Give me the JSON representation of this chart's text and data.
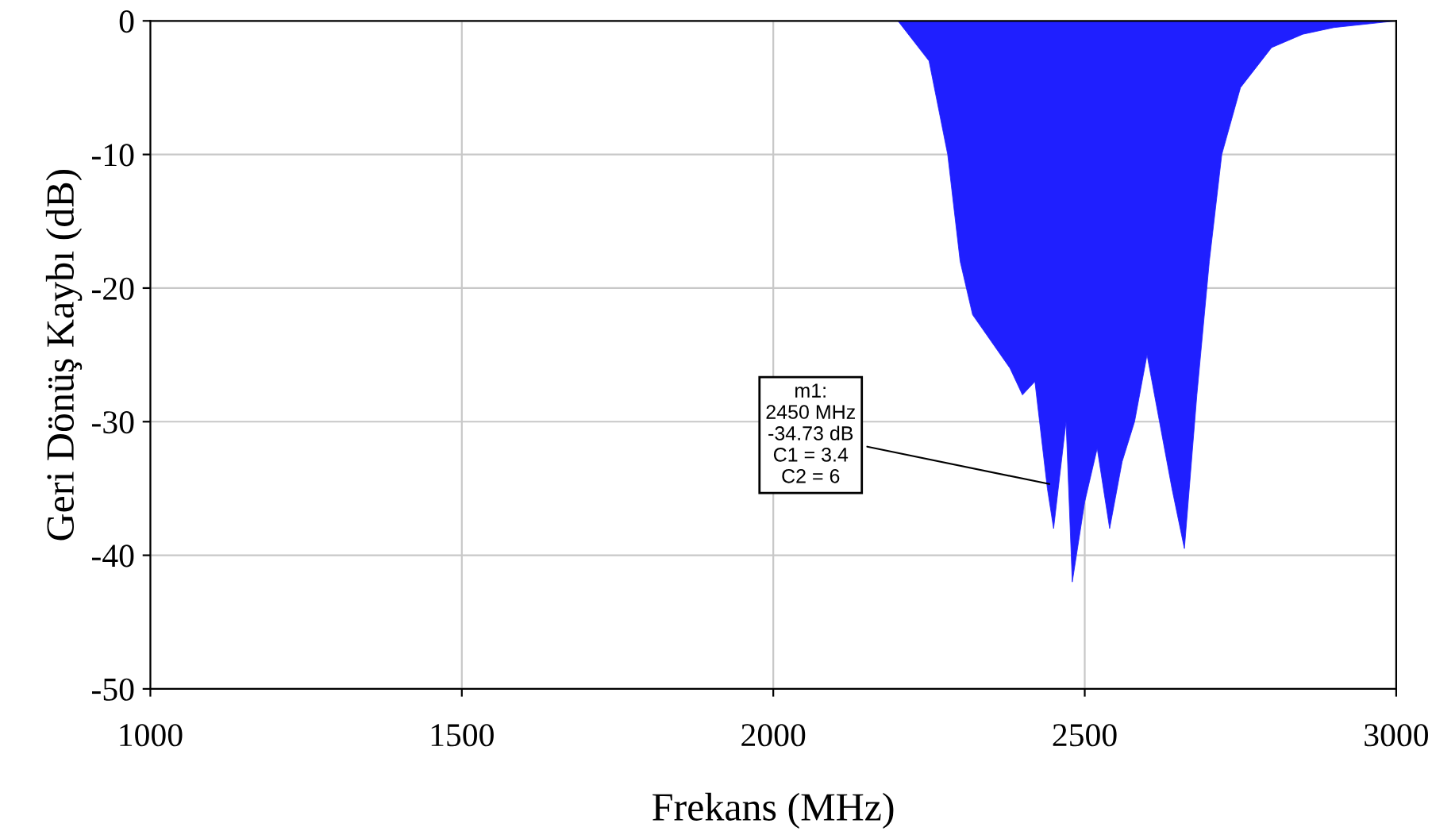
{
  "chart_data": {
    "type": "area",
    "xlabel": "Frekans (MHz)",
    "ylabel": "Geri Dönüş Kaybı (dB)",
    "x": [
      1000,
      1500,
      2000,
      2200,
      2250,
      2280,
      2300,
      2320,
      2350,
      2380,
      2400,
      2420,
      2440,
      2450,
      2470,
      2480,
      2500,
      2520,
      2540,
      2560,
      2580,
      2600,
      2620,
      2640,
      2660,
      2680,
      2700,
      2720,
      2750,
      2800,
      2850,
      2900,
      3000
    ],
    "series": [
      {
        "color": "#1f1fff",
        "values": [
          0,
          0,
          0,
          0,
          -3,
          -10,
          -18,
          -22,
          -24,
          -26,
          -28,
          -27,
          -35,
          -38,
          -30,
          -42,
          -36,
          -32,
          -38,
          -33,
          -30,
          -25,
          -30,
          -35,
          -39.5,
          -28,
          -18,
          -10,
          -5,
          -2,
          -1,
          -0.5,
          0
        ]
      }
    ],
    "xlim": [
      1000,
      3000
    ],
    "ylim": [
      -50,
      0
    ],
    "xticks": [
      1000,
      1500,
      2000,
      2500,
      3000
    ],
    "yticks": [
      -50,
      -40,
      -30,
      -20,
      -10,
      0
    ],
    "grid": true,
    "annotations": [
      {
        "text": "m1:\n2450 MHz\n-34.73 dB\nC1 = 3.4\nC2 = 6",
        "x": 2450,
        "y": -34.73
      }
    ]
  }
}
